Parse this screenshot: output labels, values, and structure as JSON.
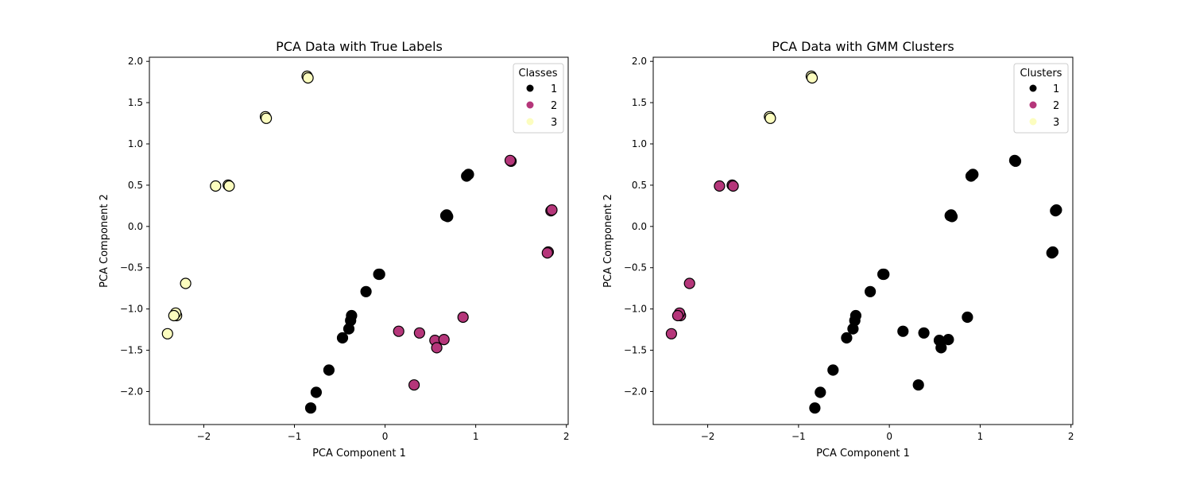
{
  "chart_data": [
    {
      "type": "scatter",
      "title": "PCA Data with True Labels",
      "xlabel": "PCA Component 1",
      "ylabel": "PCA Component 2",
      "xlim": [
        -2.6,
        2.02
      ],
      "ylim": [
        -2.4,
        2.05
      ],
      "xticks": [
        -2,
        -1,
        0,
        1,
        2
      ],
      "yticks": [
        -2.0,
        -1.5,
        -1.0,
        -0.5,
        0.0,
        0.5,
        1.0,
        1.5,
        2.0
      ],
      "grid": false,
      "legend": {
        "title": "Classes",
        "placement": "top-right",
        "entries": [
          {
            "label": "1",
            "color": "#000000"
          },
          {
            "label": "2",
            "color": "#b5367a"
          },
          {
            "label": "3",
            "color": "#fcfdbf"
          }
        ]
      },
      "series": [
        {
          "name": "1",
          "color": "#000000",
          "points": [
            [
              0.92,
              0.63
            ],
            [
              0.9,
              0.61
            ],
            [
              0.68,
              0.14
            ],
            [
              0.69,
              0.12
            ],
            [
              0.67,
              0.13
            ],
            [
              -0.07,
              -0.58
            ],
            [
              -0.06,
              -0.58
            ],
            [
              -0.21,
              -0.79
            ],
            [
              -0.37,
              -1.08
            ],
            [
              -0.38,
              -1.14
            ],
            [
              -0.4,
              -1.24
            ],
            [
              -0.47,
              -1.35
            ],
            [
              -0.62,
              -1.74
            ],
            [
              -0.76,
              -2.01
            ],
            [
              -0.82,
              -2.2
            ]
          ]
        },
        {
          "name": "2",
          "color": "#b5367a",
          "points": [
            [
              1.39,
              0.79
            ],
            [
              1.38,
              0.8
            ],
            [
              1.83,
              0.19
            ],
            [
              1.84,
              0.2
            ],
            [
              1.8,
              -0.31
            ],
            [
              1.79,
              -0.32
            ],
            [
              0.15,
              -1.27
            ],
            [
              0.38,
              -1.29
            ],
            [
              0.55,
              -1.38
            ],
            [
              0.65,
              -1.37
            ],
            [
              0.57,
              -1.47
            ],
            [
              0.86,
              -1.1
            ],
            [
              0.32,
              -1.92
            ]
          ]
        },
        {
          "name": "3",
          "color": "#fcfdbf",
          "points": [
            [
              -0.86,
              1.82
            ],
            [
              -0.85,
              1.8
            ],
            [
              -1.32,
              1.33
            ],
            [
              -1.31,
              1.31
            ],
            [
              -1.73,
              0.5
            ],
            [
              -1.72,
              0.49
            ],
            [
              -1.87,
              0.49
            ],
            [
              -2.2,
              -0.69
            ],
            [
              -2.3,
              -1.08
            ],
            [
              -2.31,
              -1.05
            ],
            [
              -2.33,
              -1.08
            ],
            [
              -2.4,
              -1.3
            ]
          ]
        }
      ]
    },
    {
      "type": "scatter",
      "title": "PCA Data with GMM Clusters",
      "xlabel": "PCA Component 1",
      "ylabel": "PCA Component 2",
      "xlim": [
        -2.6,
        2.02
      ],
      "ylim": [
        -2.4,
        2.05
      ],
      "xticks": [
        -2,
        -1,
        0,
        1,
        2
      ],
      "yticks": [
        -2.0,
        -1.5,
        -1.0,
        -0.5,
        0.0,
        0.5,
        1.0,
        1.5,
        2.0
      ],
      "grid": false,
      "legend": {
        "title": "Clusters",
        "placement": "top-right",
        "entries": [
          {
            "label": "1",
            "color": "#000000"
          },
          {
            "label": "2",
            "color": "#b5367a"
          },
          {
            "label": "3",
            "color": "#fcfdbf"
          }
        ]
      },
      "series": [
        {
          "name": "1",
          "color": "#000000",
          "points": [
            [
              0.92,
              0.63
            ],
            [
              0.9,
              0.61
            ],
            [
              0.68,
              0.14
            ],
            [
              0.69,
              0.12
            ],
            [
              0.67,
              0.13
            ],
            [
              -0.07,
              -0.58
            ],
            [
              -0.06,
              -0.58
            ],
            [
              -0.21,
              -0.79
            ],
            [
              -0.37,
              -1.08
            ],
            [
              -0.38,
              -1.14
            ],
            [
              -0.4,
              -1.24
            ],
            [
              -0.47,
              -1.35
            ],
            [
              -0.62,
              -1.74
            ],
            [
              -0.76,
              -2.01
            ],
            [
              -0.82,
              -2.2
            ],
            [
              1.39,
              0.79
            ],
            [
              1.38,
              0.8
            ],
            [
              1.83,
              0.19
            ],
            [
              1.84,
              0.2
            ],
            [
              1.8,
              -0.31
            ],
            [
              1.79,
              -0.32
            ],
            [
              0.15,
              -1.27
            ],
            [
              0.38,
              -1.29
            ],
            [
              0.55,
              -1.38
            ],
            [
              0.65,
              -1.37
            ],
            [
              0.57,
              -1.47
            ],
            [
              0.86,
              -1.1
            ],
            [
              0.32,
              -1.92
            ]
          ]
        },
        {
          "name": "2",
          "color": "#b5367a",
          "points": [
            [
              -1.73,
              0.5
            ],
            [
              -1.72,
              0.49
            ],
            [
              -1.87,
              0.49
            ],
            [
              -2.2,
              -0.69
            ],
            [
              -2.3,
              -1.08
            ],
            [
              -2.31,
              -1.05
            ],
            [
              -2.33,
              -1.08
            ],
            [
              -2.4,
              -1.3
            ]
          ]
        },
        {
          "name": "3",
          "color": "#fcfdbf",
          "points": [
            [
              -0.86,
              1.82
            ],
            [
              -0.85,
              1.8
            ],
            [
              -1.32,
              1.33
            ],
            [
              -1.31,
              1.31
            ]
          ]
        }
      ]
    }
  ]
}
